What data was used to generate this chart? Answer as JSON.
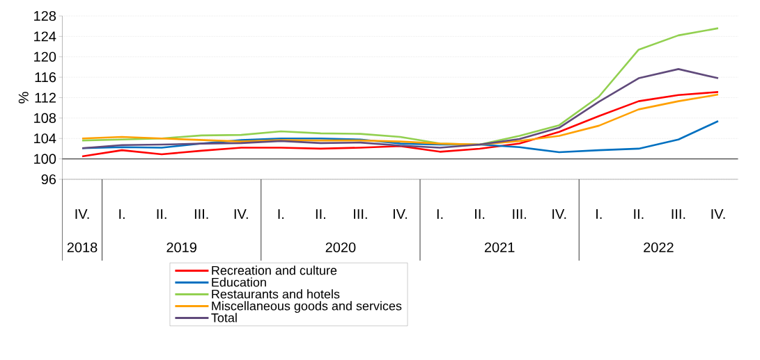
{
  "chart_data": {
    "type": "line",
    "ylabel": "%",
    "categories": [
      "IV.",
      "I.",
      "II.",
      "III.",
      "IV.",
      "I.",
      "II.",
      "III.",
      "IV.",
      "I.",
      "II.",
      "III.",
      "IV.",
      "I.",
      "II.",
      "III.",
      "IV."
    ],
    "annotations": [
      "2018",
      "2019",
      "2020",
      "2021",
      "2022"
    ],
    "ylim": [
      96,
      128
    ],
    "yticks": [
      96,
      100,
      104,
      108,
      112,
      116,
      120,
      124,
      128
    ],
    "grid": "y",
    "legend": "bottom",
    "marker": "none",
    "ref_lines": [
      {
        "axis": "y",
        "value": 100,
        "color": "#404040"
      }
    ],
    "series": [
      {
        "name": "Recreation and culture",
        "color": "#ff0000",
        "values": [
          100.5,
          101.7,
          100.9,
          101.6,
          102.2,
          102.2,
          102.0,
          102.2,
          102.5,
          101.4,
          102.0,
          103.0,
          105.3,
          108.4,
          111.3,
          112.5,
          113.1
        ]
      },
      {
        "name": "Education",
        "color": "#0070c0",
        "values": [
          102.1,
          102.3,
          102.2,
          103.0,
          103.7,
          104.0,
          104.0,
          103.8,
          103.0,
          102.8,
          102.8,
          102.3,
          101.3,
          101.7,
          102.0,
          103.8,
          107.4
        ]
      },
      {
        "name": "Restaurants and hotels",
        "color": "#92d050",
        "values": [
          103.6,
          103.8,
          104.0,
          104.6,
          104.7,
          105.4,
          105.0,
          104.9,
          104.3,
          103.0,
          102.8,
          104.5,
          106.6,
          112.2,
          121.4,
          124.2,
          125.6
        ]
      },
      {
        "name": "Miscellaneous goods and services",
        "color": "#ffa000",
        "values": [
          104.0,
          104.3,
          104.0,
          103.7,
          103.4,
          103.7,
          103.6,
          103.6,
          103.4,
          103.0,
          102.8,
          103.5,
          104.5,
          106.5,
          109.7,
          111.3,
          112.6
        ]
      },
      {
        "name": "Total",
        "color": "#604a7b",
        "values": [
          102.1,
          102.7,
          102.8,
          103.0,
          103.1,
          103.5,
          103.1,
          103.2,
          102.6,
          102.2,
          102.8,
          103.9,
          106.1,
          111.2,
          115.8,
          117.6,
          115.8
        ]
      }
    ]
  }
}
